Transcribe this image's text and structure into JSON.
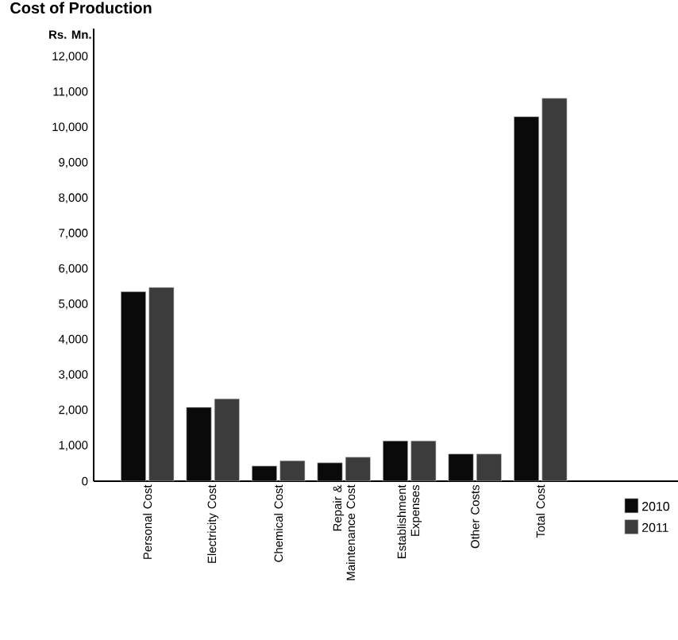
{
  "chart_data": {
    "type": "bar",
    "title": "Cost of Production",
    "ylabel": "Rs. Mn.",
    "categories": [
      "Personal Cost",
      "Electricity Cost",
      "Chemical Cost",
      "Repair & Maintenance Cost",
      "Establishment Expenses",
      "Other Costs",
      "Total Cost"
    ],
    "series": [
      {
        "name": "2010",
        "color": "#0a0a0a",
        "values": [
          5360,
          2090,
          430,
          520,
          1140,
          770,
          10310
        ]
      },
      {
        "name": "2011",
        "color": "#3c3c3c",
        "values": [
          5480,
          2330,
          580,
          680,
          1140,
          770,
          10830
        ]
      }
    ],
    "ylim": [
      0,
      12800
    ],
    "yticks": [
      0,
      {
        "value": 1000,
        "label": "1,000"
      },
      {
        "value": 2000,
        "label": "2,000"
      },
      {
        "value": 3000,
        "label": "3,000"
      },
      {
        "value": 4000,
        "label": "4,000"
      },
      {
        "value": 5000,
        "label": "5,000"
      },
      {
        "value": 6000,
        "label": "6,000"
      },
      {
        "value": 7000,
        "label": "7,000"
      },
      {
        "value": 8000,
        "label": "8,000"
      },
      {
        "value": 9000,
        "label": "9,000"
      },
      {
        "value": 10000,
        "label": "10,000"
      },
      {
        "value": 11000,
        "label": "11,000"
      },
      {
        "value": 12000,
        "label": "12,000"
      }
    ],
    "legend": "bottom right",
    "grid": false
  }
}
